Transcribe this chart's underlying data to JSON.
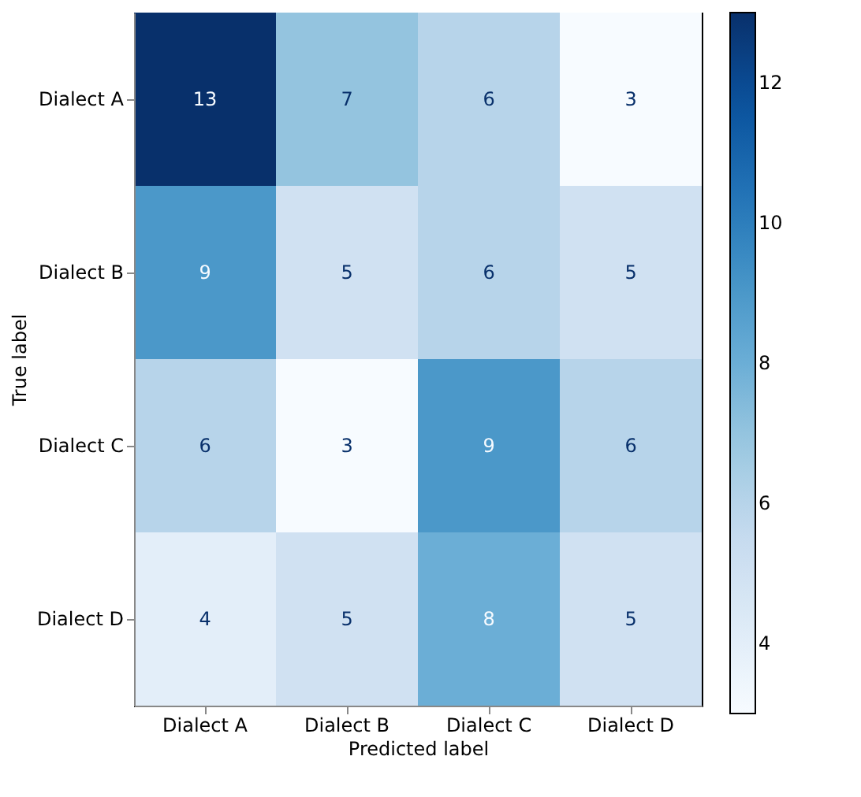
{
  "chart_data": {
    "type": "heatmap",
    "xlabel": "Predicted label",
    "ylabel": "True label",
    "categories": [
      "Dialect A",
      "Dialect B",
      "Dialect C",
      "Dialect D"
    ],
    "y_categories": [
      "Dialect A",
      "Dialect B",
      "Dialect C",
      "Dialect D"
    ],
    "cells": [
      [
        13,
        7,
        6,
        3
      ],
      [
        9,
        5,
        6,
        5
      ],
      [
        6,
        3,
        9,
        6
      ],
      [
        4,
        5,
        8,
        5
      ]
    ],
    "data_labels": true,
    "clim": [
      3,
      13
    ],
    "cticks": [
      4,
      6,
      8,
      10,
      12
    ]
  }
}
